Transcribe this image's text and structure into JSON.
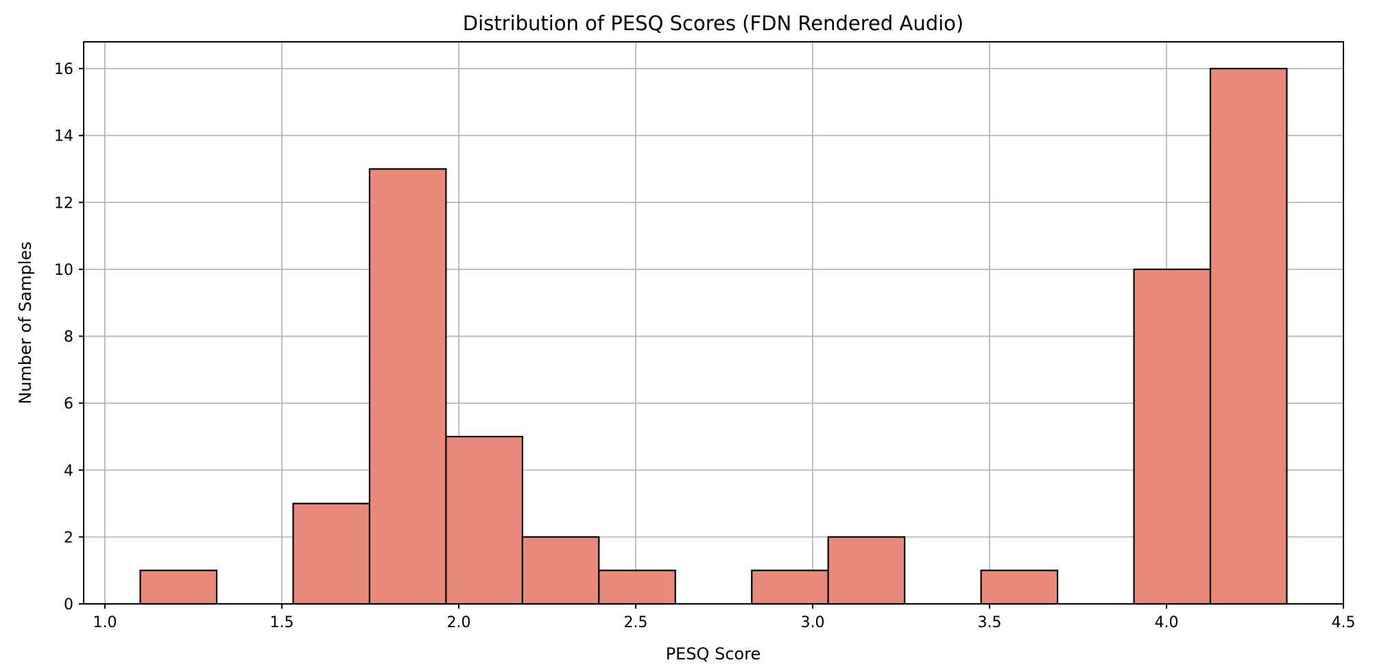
{
  "chart_data": {
    "type": "histogram",
    "title": "Distribution of PESQ Scores (FDN Rendered Audio)",
    "xlabel": "PESQ Score",
    "ylabel": "Number of Samples",
    "xlim": [
      0.94,
      4.5
    ],
    "ylim": [
      0,
      16.8
    ],
    "xticks": [
      1.0,
      1.5,
      2.0,
      2.5,
      3.0,
      3.5,
      4.0,
      4.5
    ],
    "xtick_labels": [
      "1.0",
      "1.5",
      "2.0",
      "2.5",
      "3.0",
      "3.5",
      "4.0",
      "4.5"
    ],
    "yticks": [
      0,
      2,
      4,
      6,
      8,
      10,
      12,
      14,
      16
    ],
    "ytick_labels": [
      "0",
      "2",
      "4",
      "6",
      "8",
      "10",
      "12",
      "14",
      "16"
    ],
    "grid": true,
    "bar_color": "#e9897a",
    "edge_color": "#000000",
    "bin_edges": [
      1.1,
      1.316,
      1.532,
      1.748,
      1.964,
      2.18,
      2.396,
      2.612,
      2.828,
      3.044,
      3.26,
      3.476,
      3.692,
      3.908,
      4.124,
      4.34
    ],
    "counts": [
      1,
      0,
      3,
      13,
      5,
      2,
      1,
      0,
      1,
      2,
      0,
      1,
      0,
      10,
      16
    ]
  }
}
